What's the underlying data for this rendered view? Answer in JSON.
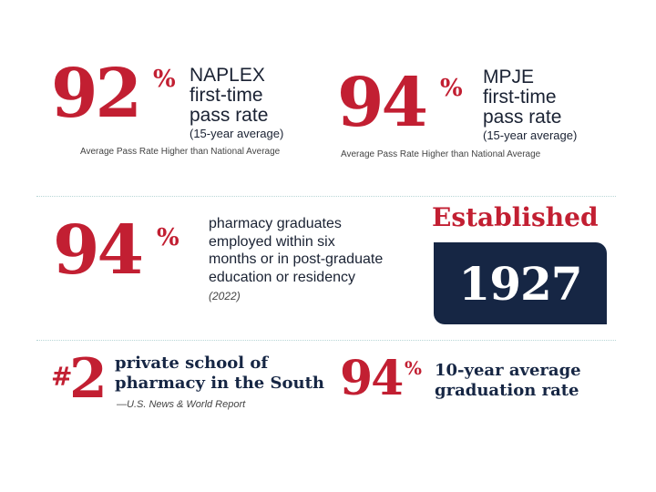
{
  "naplex": {
    "value": "92",
    "percent": "%",
    "line1": "NAPLEX",
    "line2": "first-time",
    "line3": "pass rate",
    "sub": "(15-year average)",
    "note": "Average Pass Rate Higher than National Average"
  },
  "mpje": {
    "value": "94",
    "percent": "%",
    "line1": "MPJE",
    "line2": "first-time",
    "line3": "pass rate",
    "sub": "(15-year average)",
    "note": "Average Pass Rate Higher than National Average"
  },
  "employment": {
    "value": "94",
    "percent": "%",
    "line1": "pharmacy graduates",
    "line2": "employed within six",
    "line3": "months or in post-graduate",
    "line4": "education or residency",
    "year": "(2022)"
  },
  "established": {
    "label": "Established",
    "year": "1927"
  },
  "ranking": {
    "hash": "#",
    "value": "2",
    "line1": "private school of",
    "line2": "pharmacy in the South",
    "source": "—U.S. News & World Report"
  },
  "graduation": {
    "value": "94",
    "percent": "%",
    "line1": "10-year average",
    "line2": "graduation rate"
  },
  "colors": {
    "accent_red": "#c21f32",
    "navy": "#162644",
    "divider": "#b8d6d6"
  }
}
